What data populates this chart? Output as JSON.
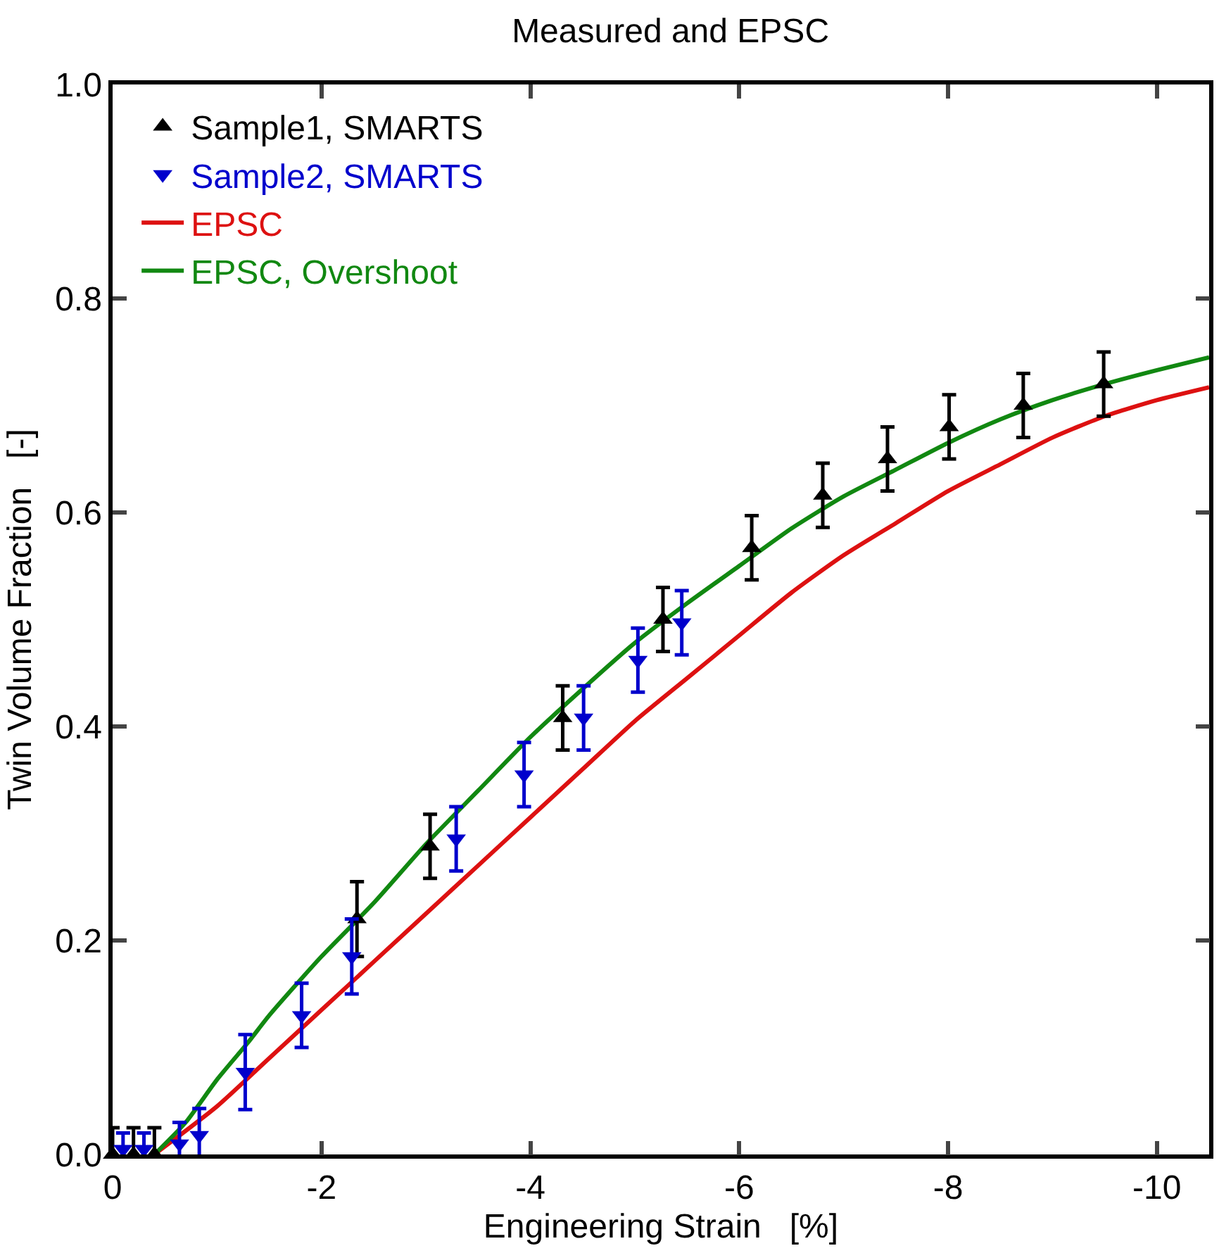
{
  "chart_data": {
    "type": "scatter",
    "title": "Measured and EPSC",
    "xlabel": "Engineering Strain   [%]",
    "ylabel": "Twin Volume Fraction   [-]",
    "xlim": [
      0,
      -10.5
    ],
    "ylim": [
      0,
      1.0
    ],
    "xticks": [
      0,
      -2,
      -4,
      -6,
      -8,
      -10
    ],
    "yticks": [
      {
        "value": 0,
        "label": "0.0"
      },
      0.2,
      0.4,
      0.6,
      0.8,
      {
        "value": 1.0,
        "label": "1.0"
      }
    ],
    "legend": "top left",
    "series": [
      {
        "name": "Sample1, SMARTS",
        "marker": "triangle",
        "color": "#000000",
        "x": [
          0,
          -0.2,
          -0.4,
          -2.34,
          -3.04,
          -4.31,
          -5.27,
          -6.12,
          -6.8,
          -7.42,
          -8.01,
          -8.72,
          -9.49
        ],
        "values": [
          0,
          0,
          0,
          0.22,
          0.288,
          0.408,
          0.5,
          0.567,
          0.616,
          0.65,
          0.68,
          0.7,
          0.72
        ],
        "errors": [
          0.025,
          0.025,
          0.025,
          0.035,
          0.03,
          0.03,
          0.03,
          0.03,
          0.03,
          0.03,
          0.03,
          0.03,
          0.03
        ]
      },
      {
        "name": "Sample2, SMARTS",
        "marker": "triangle-down",
        "color": "#0000cc",
        "x": [
          -0.1,
          -0.3,
          -0.64,
          -0.83,
          -1.27,
          -1.81,
          -2.29,
          -3.29,
          -3.94,
          -4.51,
          -5.03,
          -5.45
        ],
        "values": [
          0.005,
          0.005,
          0.01,
          0.018,
          0.077,
          0.13,
          0.185,
          0.295,
          0.355,
          0.408,
          0.462,
          0.497
        ],
        "errors": [
          0.015,
          0.015,
          0.02,
          0.025,
          0.035,
          0.03,
          0.035,
          0.03,
          0.03,
          0.03,
          0.03,
          0.03
        ]
      },
      {
        "name": "EPSC",
        "type": "line",
        "color": "#dd1111",
        "x": [
          -0.4,
          -1,
          -1.5,
          -2,
          -2.5,
          -3,
          -3.5,
          -4,
          -4.5,
          -5,
          -5.5,
          -6,
          -6.5,
          -7,
          -7.5,
          -8,
          -8.5,
          -9,
          -9.5,
          -10,
          -10.5
        ],
        "values": [
          0,
          0.045,
          0.09,
          0.135,
          0.18,
          0.225,
          0.27,
          0.315,
          0.36,
          0.405,
          0.445,
          0.485,
          0.525,
          0.56,
          0.59,
          0.62,
          0.645,
          0.67,
          0.69,
          0.705,
          0.717
        ]
      },
      {
        "name": "EPSC, Overshoot",
        "type": "line",
        "color": "#118811",
        "x": [
          -0.4,
          -0.7,
          -1,
          -1.3,
          -1.5,
          -2,
          -2.5,
          -3,
          -3.5,
          -4,
          -4.5,
          -5,
          -5.5,
          -6,
          -6.5,
          -7,
          -7.5,
          -8,
          -8.5,
          -9,
          -9.5,
          -10,
          -10.5
        ],
        "values": [
          0,
          0.03,
          0.07,
          0.105,
          0.13,
          0.185,
          0.235,
          0.29,
          0.34,
          0.39,
          0.435,
          0.478,
          0.515,
          0.55,
          0.585,
          0.615,
          0.64,
          0.665,
          0.687,
          0.705,
          0.72,
          0.733,
          0.745
        ]
      }
    ]
  }
}
